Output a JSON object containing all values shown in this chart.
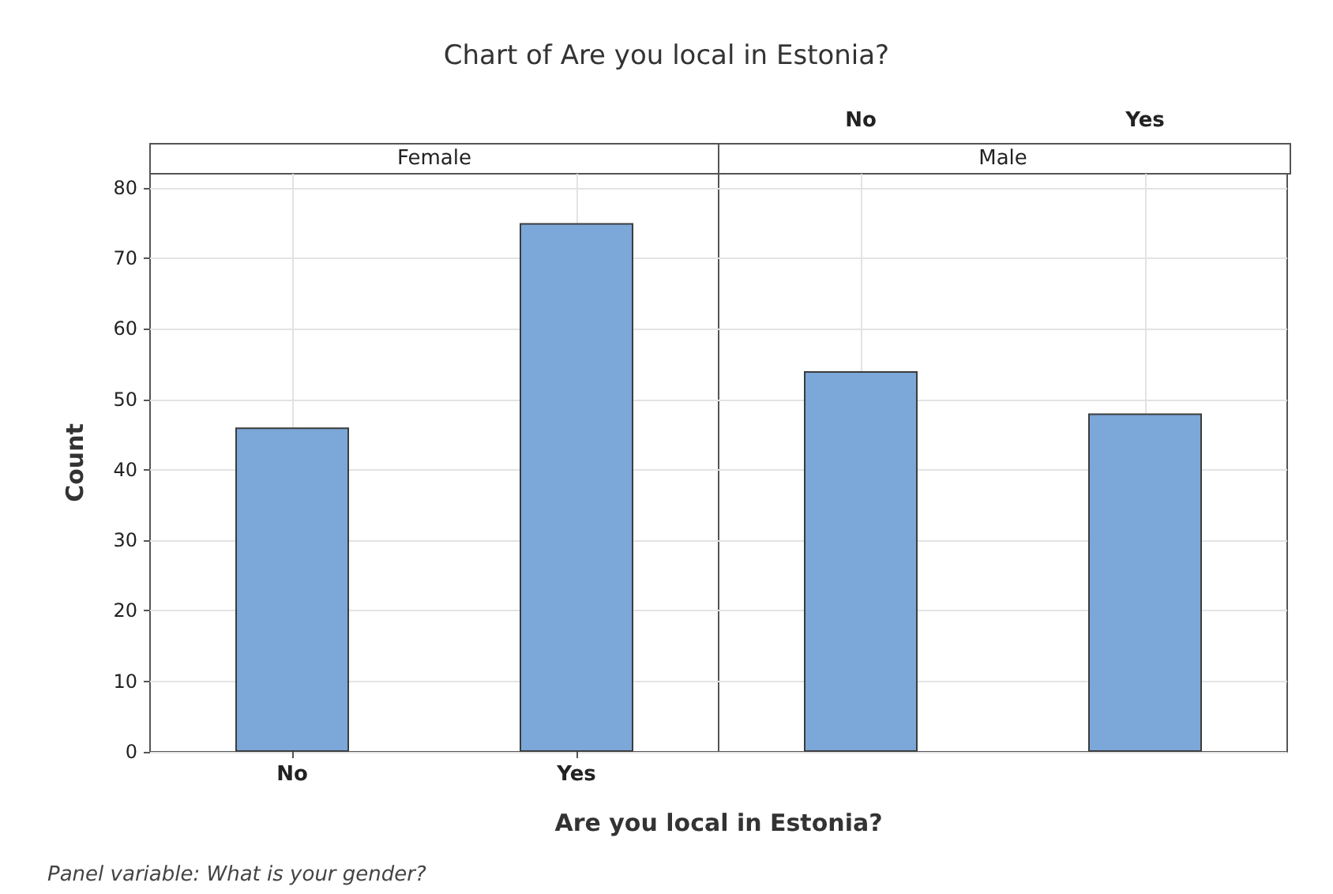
{
  "chart_data": [
    {
      "type": "bar",
      "title": "Chart of Are you local in Estonia?",
      "subtitle": "Female",
      "xlabel": "Are you local in Estonia?",
      "ylabel": "Count",
      "annotations": [
        "Panel variable: What is your gender?"
      ],
      "categories": [
        "No",
        "Yes"
      ],
      "values": [
        46,
        75
      ],
      "color": "#7ba7d9",
      "ylim": [
        0,
        82
      ],
      "yticks": [
        0,
        10,
        20,
        30,
        40,
        50,
        60,
        70,
        80
      ],
      "grid": true
    },
    {
      "type": "bar",
      "subtitle": "Male",
      "categories": [
        "No",
        "Yes"
      ],
      "values": [
        54,
        48
      ],
      "color": "#7ba7d9",
      "ylim": [
        0,
        82
      ],
      "yticks": [
        0,
        10,
        20,
        30,
        40,
        50,
        60,
        70,
        80
      ],
      "grid": true,
      "tick_labels": "x"
    }
  ]
}
